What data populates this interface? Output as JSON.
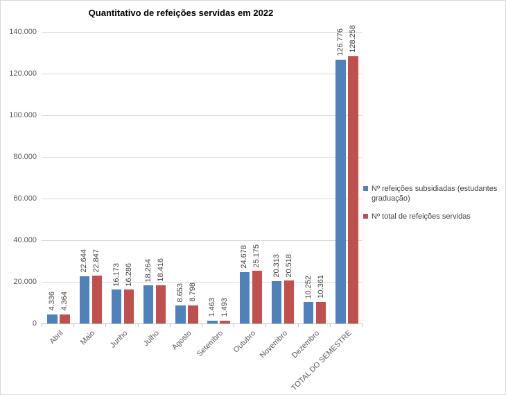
{
  "chart_data": {
    "type": "bar",
    "title": "Quantitativo de refeições servidas em 2022",
    "categories": [
      "Abril",
      "Maio",
      "Junho",
      "Julho",
      "Agosto",
      "Setembro",
      "Outubro",
      "Novembro",
      "Dezembro",
      "TOTAL DO SEMESTRE"
    ],
    "series": [
      {
        "name": "Nº refeições subsidiadas (estudantes graduação)",
        "color": "#4F81BD",
        "values": [
          4336,
          22644,
          16173,
          18264,
          8653,
          1463,
          24678,
          20313,
          10252,
          126776
        ],
        "labels": [
          "4.336",
          "22.644",
          "16.173",
          "18.264",
          "8.653",
          "1.463",
          "24.678",
          "20.313",
          "10.252",
          "126.776"
        ]
      },
      {
        "name": "Nº total de refeições servidas",
        "color": "#C0504D",
        "values": [
          4364,
          22847,
          16286,
          18416,
          8798,
          1493,
          25175,
          20518,
          10361,
          128258
        ],
        "labels": [
          "4.364",
          "22.847",
          "16.286",
          "18.416",
          "8.798",
          "1.493",
          "25.175",
          "20.518",
          "10.361",
          "128.258"
        ]
      }
    ],
    "ylim": [
      0,
      140000
    ],
    "yticks": [
      {
        "value": 0,
        "label": "0"
      },
      {
        "value": 20000,
        "label": "20.000"
      },
      {
        "value": 40000,
        "label": "40.000"
      },
      {
        "value": 60000,
        "label": "60.000"
      },
      {
        "value": 80000,
        "label": "80.000"
      },
      {
        "value": 100000,
        "label": "100.000"
      },
      {
        "value": 120000,
        "label": "120.000"
      },
      {
        "value": 140000,
        "label": "140.000"
      }
    ],
    "grid": true,
    "legend_position": "right"
  }
}
